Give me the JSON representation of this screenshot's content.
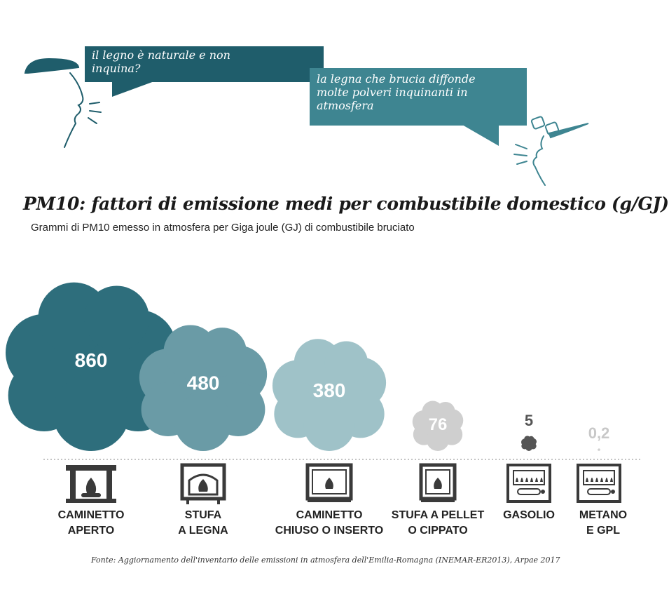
{
  "bubbles": {
    "left": {
      "line1": "il legno è naturale e non",
      "line2": "inquina?"
    },
    "right": {
      "line1": "la legna che brucia diffonde",
      "line2": "molte polveri inquinanti in",
      "line3": "atmosfera"
    }
  },
  "chart_data": {
    "type": "bar",
    "title": "PM10: fattori di emissione medi per combustibile domestico (g/GJ)",
    "subtitle": "Grammi di PM10 emesso in atmosfera per Giga joule (GJ) di combustibile bruciato",
    "categories": [
      [
        "CAMINETTO",
        "APERTO"
      ],
      [
        "STUFA",
        "A LEGNA"
      ],
      [
        "CAMINETTO",
        "CHIUSO O INSERTO"
      ],
      [
        "STUFA A PELLET",
        "O CIPPATO"
      ],
      [
        "GASOLIO"
      ],
      [
        "METANO",
        "E GPL"
      ]
    ],
    "values": [
      860,
      480,
      380,
      76,
      5,
      0.2
    ],
    "value_labels": [
      "860",
      "480",
      "380",
      "76",
      "5",
      "0,2"
    ],
    "colors": [
      "#2e6e7c",
      "#6a9ba6",
      "#9fc2c8",
      "#cfcfcf",
      "#555555",
      "#d0d0d0"
    ],
    "icons": [
      "open-fireplace-icon",
      "wood-stove-icon",
      "closed-fireplace-icon",
      "pellet-stove-icon",
      "oil-boiler-icon",
      "gas-boiler-icon"
    ]
  },
  "source": "Fonte: Aggiornamento dell'inventario delle emissioni in atmosfera dell'Emilia-Romagna (INEMAR-ER2013), Arpae 2017"
}
